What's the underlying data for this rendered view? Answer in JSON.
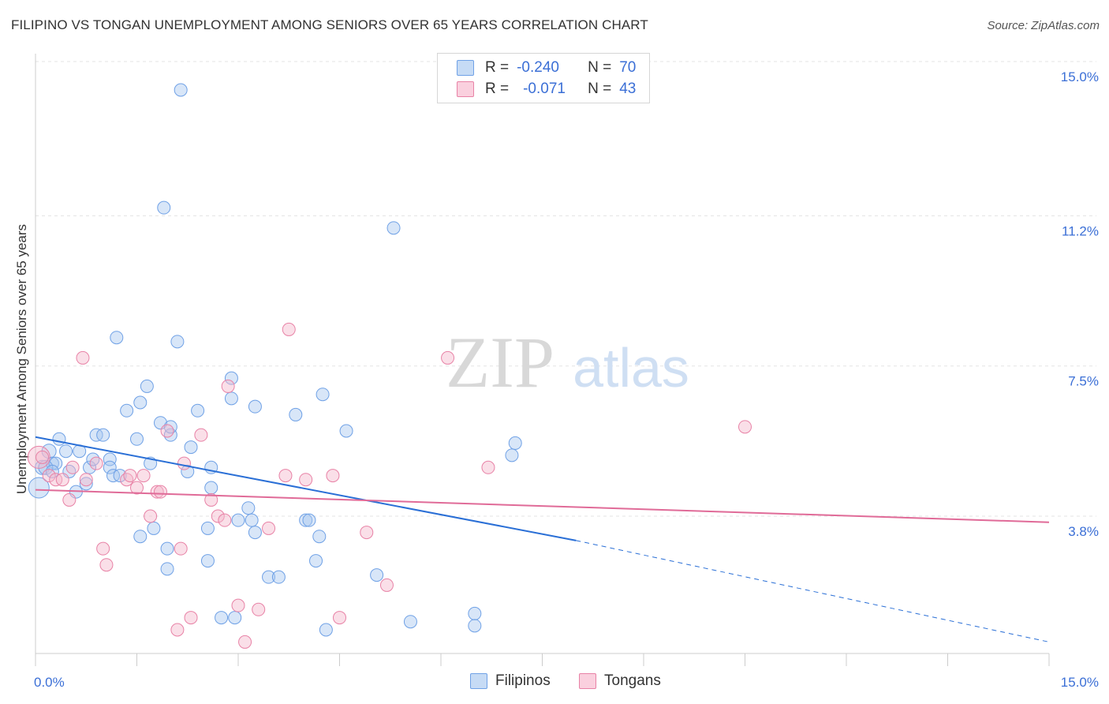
{
  "title": "FILIPINO VS TONGAN UNEMPLOYMENT AMONG SENIORS OVER 65 YEARS CORRELATION CHART",
  "source": "Source: ZipAtlas.com",
  "watermark": {
    "zip": "ZIP",
    "atlas": "atlas"
  },
  "legend": {
    "rows": [
      {
        "r_label": "R =",
        "r_value": "-0.240",
        "n_label": "N =",
        "n_value": "70",
        "color": "#a9c8f0"
      },
      {
        "r_label": "R =",
        "r_value": "-0.071",
        "n_label": "N =",
        "n_value": "43",
        "color": "#f5b8cc"
      }
    ]
  },
  "bottom_legend": [
    {
      "label": "Filipinos",
      "color": "#a9c8f0"
    },
    {
      "label": "Tongans",
      "color": "#f5b8cc"
    }
  ],
  "chart_data": {
    "type": "scatter",
    "title": "FILIPINO VS TONGAN UNEMPLOYMENT AMONG SENIORS OVER 65 YEARS CORRELATION CHART",
    "xlabel": "",
    "ylabel": "Unemployment Among Seniors over 65 years",
    "xlim": [
      0,
      15
    ],
    "ylim": [
      0,
      15.5
    ],
    "x_tick_labels": [
      "0.0%",
      "15.0%"
    ],
    "y_ticks": [
      3.8,
      7.5,
      11.2,
      15.0
    ],
    "y_tick_labels": [
      "3.8%",
      "7.5%",
      "11.2%",
      "15.0%"
    ],
    "grid": true,
    "series": [
      {
        "name": "Filipinos",
        "color": "#6fa1e6",
        "fill": "#a9c8f0",
        "r": -0.24,
        "n": 70,
        "trend": {
          "x0": 0,
          "y0": 5.75,
          "x1": 8.0,
          "y1": 3.2,
          "dash_x1": 15.0,
          "dash_y1": 0.7
        },
        "points": [
          [
            0.05,
            4.5,
            13
          ],
          [
            0.1,
            5.0,
            9
          ],
          [
            0.2,
            5.4,
            9
          ],
          [
            0.25,
            5.1,
            8
          ],
          [
            0.3,
            5.1,
            8
          ],
          [
            0.35,
            5.7,
            8
          ],
          [
            0.45,
            5.4,
            8
          ],
          [
            0.5,
            4.9,
            8
          ],
          [
            0.6,
            4.4,
            8
          ],
          [
            0.65,
            5.4,
            8
          ],
          [
            0.75,
            4.6,
            8
          ],
          [
            0.8,
            5.0,
            8
          ],
          [
            0.85,
            5.2,
            8
          ],
          [
            0.9,
            5.8,
            8
          ],
          [
            1.0,
            5.8,
            8
          ],
          [
            1.1,
            5.2,
            8
          ],
          [
            1.1,
            5.0,
            8
          ],
          [
            1.15,
            4.8,
            8
          ],
          [
            1.25,
            4.8,
            8
          ],
          [
            1.35,
            6.4,
            8
          ],
          [
            1.55,
            6.6,
            8
          ],
          [
            1.5,
            5.7,
            8
          ],
          [
            1.55,
            3.3,
            8
          ],
          [
            1.65,
            7.0,
            8
          ],
          [
            1.7,
            5.1,
            8
          ],
          [
            1.75,
            3.5,
            8
          ],
          [
            1.85,
            6.1,
            8
          ],
          [
            1.95,
            3.0,
            8
          ],
          [
            1.95,
            2.5,
            8
          ],
          [
            2.0,
            5.8,
            8
          ],
          [
            2.0,
            6.0,
            8
          ],
          [
            2.25,
            4.9,
            8
          ],
          [
            2.3,
            5.5,
            8
          ],
          [
            2.4,
            6.4,
            8
          ],
          [
            2.55,
            3.5,
            8
          ],
          [
            2.55,
            2.7,
            8
          ],
          [
            2.6,
            5.0,
            8
          ],
          [
            2.6,
            4.5,
            8
          ],
          [
            2.9,
            6.7,
            8
          ],
          [
            2.9,
            7.2,
            8
          ],
          [
            2.95,
            1.3,
            8
          ],
          [
            3.0,
            3.7,
            8
          ],
          [
            3.15,
            4.0,
            8
          ],
          [
            3.2,
            3.7,
            8
          ],
          [
            3.25,
            3.4,
            8
          ],
          [
            3.25,
            6.5,
            8
          ],
          [
            3.45,
            2.3,
            8
          ],
          [
            3.6,
            2.3,
            8
          ],
          [
            3.85,
            6.3,
            8
          ],
          [
            4.0,
            3.7,
            8
          ],
          [
            4.05,
            3.7,
            8
          ],
          [
            4.15,
            2.7,
            8
          ],
          [
            4.2,
            3.3,
            8
          ],
          [
            4.25,
            6.8,
            8
          ],
          [
            4.3,
            1.0,
            8
          ],
          [
            4.6,
            5.9,
            8
          ],
          [
            5.05,
            2.35,
            8
          ],
          [
            5.3,
            10.9,
            8
          ],
          [
            5.55,
            1.2,
            8
          ],
          [
            6.5,
            1.4,
            8
          ],
          [
            6.5,
            1.1,
            8
          ],
          [
            7.05,
            5.3,
            8
          ],
          [
            7.1,
            5.6,
            8
          ],
          [
            1.2,
            8.2,
            8
          ],
          [
            1.9,
            11.4,
            8
          ],
          [
            2.1,
            8.1,
            8
          ],
          [
            2.15,
            14.3,
            8
          ],
          [
            2.75,
            1.3,
            8
          ],
          [
            0.15,
            5.0,
            9
          ],
          [
            0.25,
            4.9,
            8
          ]
        ]
      },
      {
        "name": "Tongans",
        "color": "#e882a6",
        "fill": "#f5b8cc",
        "r": -0.071,
        "n": 43,
        "trend": {
          "x0": 0,
          "y0": 4.45,
          "x1": 15.0,
          "y1": 3.65
        },
        "points": [
          [
            0.05,
            5.25,
            14
          ],
          [
            0.1,
            5.25,
            8
          ],
          [
            0.2,
            4.8,
            8
          ],
          [
            0.3,
            4.7,
            8
          ],
          [
            0.4,
            4.7,
            8
          ],
          [
            0.5,
            4.2,
            8
          ],
          [
            0.55,
            5.0,
            8
          ],
          [
            0.7,
            7.7,
            8
          ],
          [
            0.75,
            4.7,
            8
          ],
          [
            0.9,
            5.1,
            8
          ],
          [
            1.0,
            3.0,
            8
          ],
          [
            1.05,
            2.6,
            8
          ],
          [
            1.35,
            4.7,
            8
          ],
          [
            1.4,
            4.8,
            8
          ],
          [
            1.5,
            4.5,
            8
          ],
          [
            1.6,
            4.8,
            8
          ],
          [
            1.7,
            3.8,
            8
          ],
          [
            1.8,
            4.4,
            8
          ],
          [
            1.85,
            4.4,
            8
          ],
          [
            1.95,
            5.9,
            8
          ],
          [
            2.1,
            1.0,
            8
          ],
          [
            2.15,
            3.0,
            8
          ],
          [
            2.2,
            5.1,
            8
          ],
          [
            2.3,
            1.3,
            8
          ],
          [
            2.45,
            5.8,
            8
          ],
          [
            2.6,
            4.2,
            8
          ],
          [
            2.7,
            3.8,
            8
          ],
          [
            2.8,
            3.7,
            8
          ],
          [
            2.85,
            7.0,
            8
          ],
          [
            3.0,
            1.6,
            8
          ],
          [
            3.1,
            0.7,
            8
          ],
          [
            3.3,
            1.5,
            8
          ],
          [
            3.45,
            3.5,
            8
          ],
          [
            3.7,
            4.8,
            8
          ],
          [
            3.75,
            8.4,
            8
          ],
          [
            4.0,
            4.7,
            8
          ],
          [
            4.4,
            4.8,
            8
          ],
          [
            4.5,
            1.3,
            8
          ],
          [
            4.9,
            3.4,
            8
          ],
          [
            5.2,
            2.1,
            8
          ],
          [
            6.1,
            7.7,
            8
          ],
          [
            6.7,
            5.0,
            8
          ],
          [
            10.5,
            6.0,
            8
          ]
        ]
      }
    ]
  }
}
